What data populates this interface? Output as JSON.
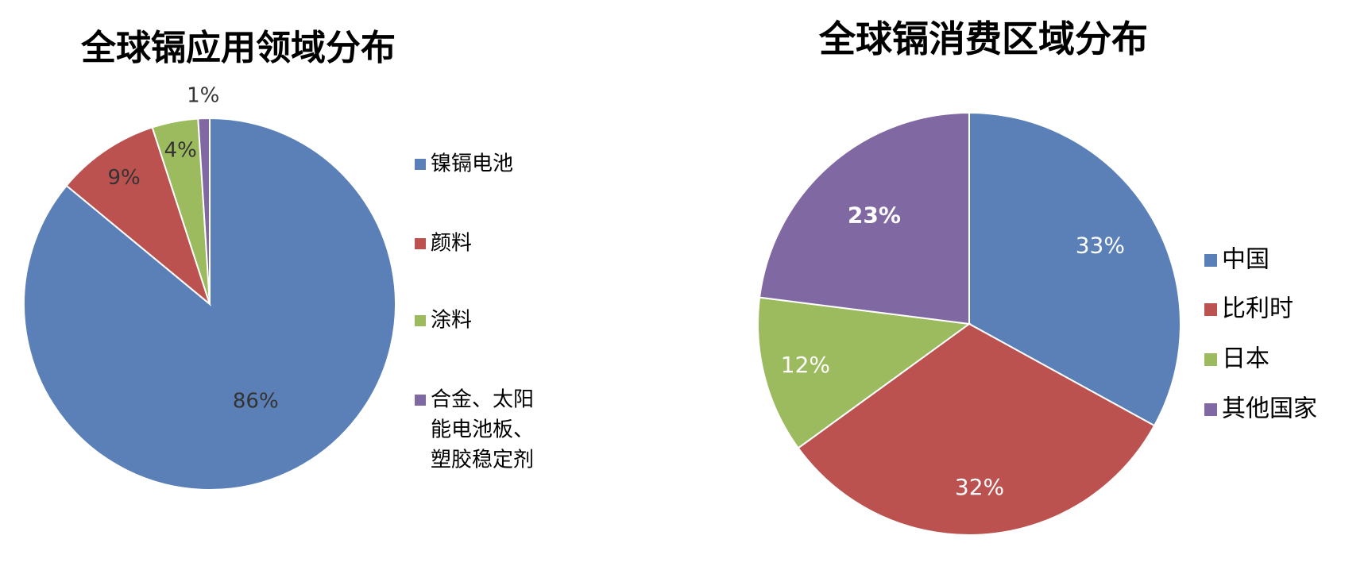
{
  "chart_data": [
    {
      "type": "pie",
      "title": "全球镉应用领域分布",
      "categories": [
        "镍镉电池",
        "颜料",
        "涂料",
        "合金、太阳能电池板、塑胶稳定剂"
      ],
      "values": [
        86,
        9,
        4,
        1
      ],
      "value_labels": [
        "86%",
        "9%",
        "4%",
        "1%"
      ],
      "colors": [
        "#5b80b8",
        "#bb5250",
        "#9cba5e",
        "#8068a2"
      ],
      "legend": {
        "position": "right",
        "entries": [
          {
            "lines": [
              "镍镉电池"
            ]
          },
          {
            "lines": [
              "颜料"
            ]
          },
          {
            "lines": [
              "涂料"
            ]
          },
          {
            "lines": [
              "合金、太阳",
              "能电池板、",
              "塑胶稳定剂"
            ]
          }
        ]
      },
      "start_angle_deg": 0,
      "direction": "clockwise",
      "label_color": "#333333"
    },
    {
      "type": "pie",
      "title": "全球镉消费区域分布",
      "categories": [
        "中国",
        "比利时",
        "日本",
        "其他国家"
      ],
      "values": [
        33,
        32,
        12,
        23
      ],
      "value_labels": [
        "33%",
        "32%",
        "12%",
        "23%"
      ],
      "colors": [
        "#5b80b8",
        "#bb5250",
        "#9cba5e",
        "#8068a2"
      ],
      "legend": {
        "position": "right",
        "entries": [
          {
            "lines": [
              "中国"
            ]
          },
          {
            "lines": [
              "比利时"
            ]
          },
          {
            "lines": [
              "日本"
            ]
          },
          {
            "lines": [
              "其他国家"
            ]
          }
        ]
      },
      "start_angle_deg": 0,
      "direction": "clockwise",
      "label_color": "#ffffff"
    }
  ]
}
